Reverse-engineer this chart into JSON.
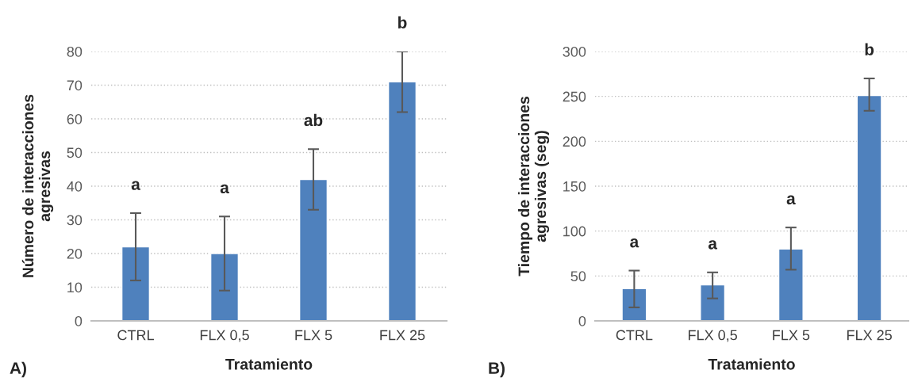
{
  "chart_data": [
    {
      "type": "bar",
      "categories": [
        "CTRL",
        "FLX 0,5",
        "FLX 5",
        "FLX 25"
      ],
      "values": [
        22,
        20,
        42,
        71
      ],
      "color": "#4f81bd",
      "errors": [
        [
          12,
          32
        ],
        [
          9,
          31
        ],
        [
          33,
          51
        ],
        [
          62,
          80
        ]
      ],
      "ylim": [
        0,
        80
      ],
      "yticks": [
        0,
        10,
        20,
        30,
        40,
        50,
        60,
        70,
        80
      ],
      "grid": "y",
      "xlabel": "Tratamiento",
      "ylabel": "Número de interacciones\nagresivas",
      "annotations": [
        "a",
        "a",
        "ab",
        "b",
        "A)"
      ]
    },
    {
      "type": "bar",
      "categories": [
        "CTRL",
        "FLX 0,5",
        "FLX 5",
        "FLX 25"
      ],
      "values": [
        36,
        40,
        80,
        251
      ],
      "color": "#4f81bd",
      "errors": [
        [
          15,
          56
        ],
        [
          25,
          54
        ],
        [
          57,
          104
        ],
        [
          234,
          270
        ]
      ],
      "ylim": [
        0,
        300
      ],
      "yticks": [
        0,
        50,
        100,
        150,
        200,
        250,
        300
      ],
      "grid": "y",
      "xlabel": "Tratamiento",
      "ylabel": "Tiempo de interacciones\nagresivas (seg)",
      "annotations": [
        "a",
        "a",
        "a",
        "b",
        "B)"
      ]
    }
  ]
}
